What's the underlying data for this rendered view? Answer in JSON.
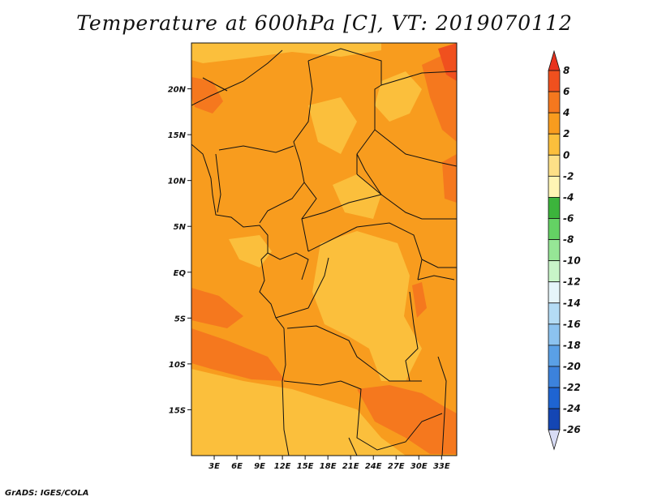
{
  "title": "Temperature at 600hPa [C], VT: 2019070112",
  "credit": "GrADS: IGES/COLA",
  "map": {
    "lat_range": [
      -20,
      25
    ],
    "lon_range": [
      0,
      35
    ],
    "lat_ticks": [
      {
        "lat": 20,
        "label": "20N"
      },
      {
        "lat": 15,
        "label": "15N"
      },
      {
        "lat": 10,
        "label": "10N"
      },
      {
        "lat": 5,
        "label": "5N"
      },
      {
        "lat": 0,
        "label": "EQ"
      },
      {
        "lat": -5,
        "label": "5S"
      },
      {
        "lat": -10,
        "label": "10S"
      },
      {
        "lat": -15,
        "label": "15S"
      }
    ],
    "lon_ticks": [
      {
        "lon": 3,
        "label": "3E"
      },
      {
        "lon": 6,
        "label": "6E"
      },
      {
        "lon": 9,
        "label": "9E"
      },
      {
        "lon": 12,
        "label": "12E"
      },
      {
        "lon": 15,
        "label": "15E"
      },
      {
        "lon": 18,
        "label": "18E"
      },
      {
        "lon": 21,
        "label": "21E"
      },
      {
        "lon": 24,
        "label": "24E"
      },
      {
        "lon": 27,
        "label": "27E"
      },
      {
        "lon": 30,
        "label": "30E"
      },
      {
        "lon": 33,
        "label": "33E"
      }
    ]
  },
  "colorbar": {
    "labels": [
      "8",
      "6",
      "4",
      "2",
      "0",
      "-2",
      "-4",
      "-6",
      "-8",
      "-10",
      "-12",
      "-14",
      "-16",
      "-18",
      "-20",
      "-22",
      "-24",
      "-26"
    ],
    "colors": [
      "#e8321e",
      "#f0501e",
      "#f5781e",
      "#f89c1e",
      "#fbbf3c",
      "#fde087",
      "#fff5b4",
      "#3cb43c",
      "#64d264",
      "#96e696",
      "#c8f5c8",
      "#e6f5fa",
      "#b4dcf5",
      "#8cc3f0",
      "#5aa0e6",
      "#3c82dc",
      "#1e64d2",
      "#1446b4",
      "#0a2896",
      "#14146e",
      "#d8dcf5"
    ]
  }
}
